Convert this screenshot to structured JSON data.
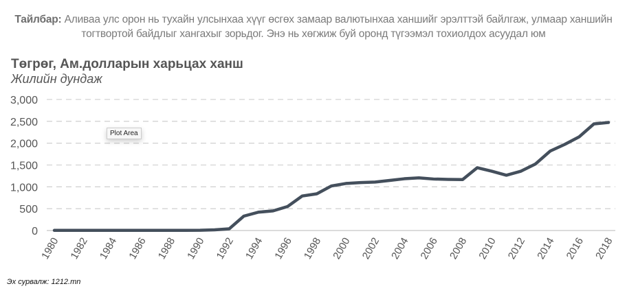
{
  "note": {
    "label": "Тайлбар:",
    "text": "Аливаа улс орон нь тухайн улсынхаа хүүг өсгөх замаар валютынхаа ханшийг эрэлттэй байлгаж, улмаар ханшийн тогтвортой байдлыг хангахыг зорьдог. Энэ нь хөгжиж буй оронд түгээмэл тохиолдох асуудал юм"
  },
  "source": "Эх сурвалж: 1212.mn",
  "tooltip": "Plot Area",
  "chart_data": {
    "type": "line",
    "title": "Төгрөг, Ам.долларын харьцах ханш",
    "subtitle": "Жилийн дундаж",
    "xlabel": "",
    "ylabel": "",
    "ylim": [
      0,
      3000
    ],
    "yticks": [
      "0",
      "500",
      "1,000",
      "1,500",
      "2,000",
      "2,500",
      "3,000"
    ],
    "xticks": [
      "1980",
      "1982",
      "1984",
      "1986",
      "1988",
      "1990",
      "1992",
      "1994",
      "1996",
      "1998",
      "2000",
      "2002",
      "2004",
      "2006",
      "2008",
      "2010",
      "2012",
      "2014",
      "2016",
      "2018"
    ],
    "grid": true,
    "color": "#444f5c",
    "x": [
      1980,
      1981,
      1982,
      1983,
      1984,
      1985,
      1986,
      1987,
      1988,
      1989,
      1990,
      1991,
      1992,
      1993,
      1994,
      1995,
      1996,
      1997,
      1998,
      1999,
      2000,
      2001,
      2002,
      2003,
      2004,
      2005,
      2006,
      2007,
      2008,
      2009,
      2010,
      2011,
      2012,
      2013,
      2014,
      2015,
      2016,
      2017,
      2018
    ],
    "values": [
      3,
      3,
      3,
      3,
      3,
      3,
      3,
      3,
      3,
      3,
      5,
      15,
      40,
      330,
      420,
      450,
      550,
      790,
      840,
      1020,
      1077,
      1097,
      1110,
      1146,
      1185,
      1205,
      1179,
      1170,
      1166,
      1438,
      1357,
      1266,
      1358,
      1524,
      1818,
      1971,
      2146,
      2440,
      2473
    ]
  }
}
